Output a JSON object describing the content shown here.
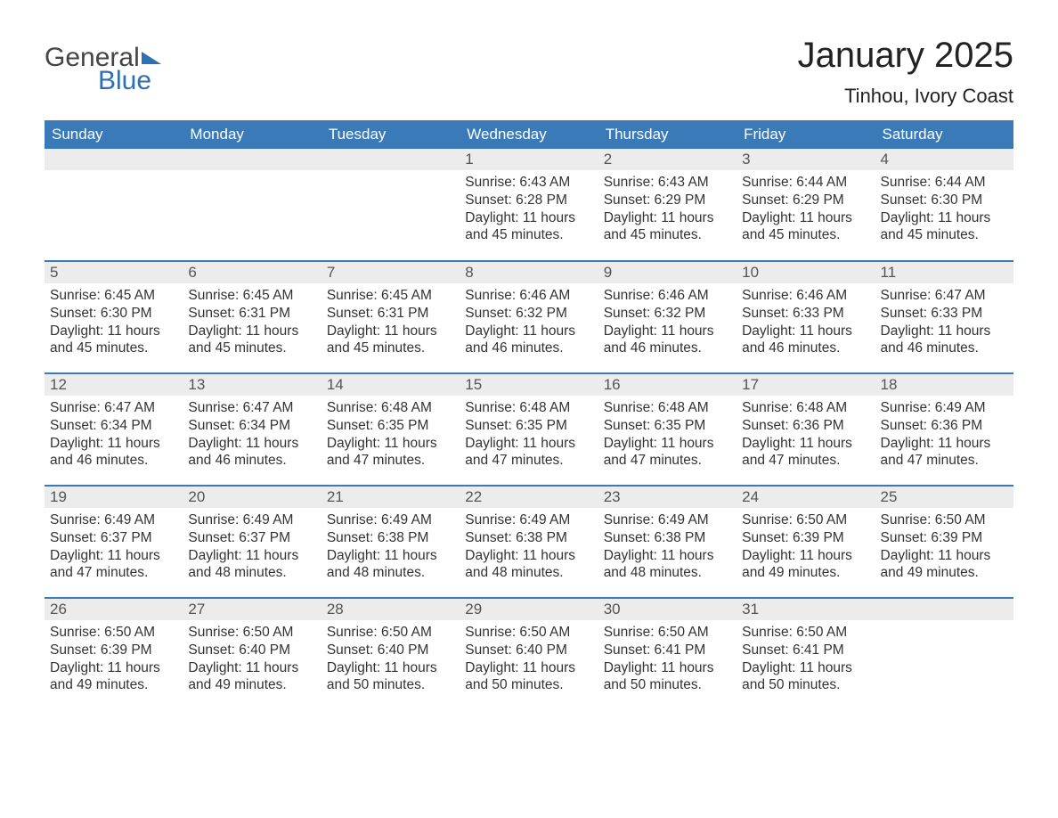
{
  "logo": {
    "text_a": "General",
    "text_b": "Blue"
  },
  "month_title": "January 2025",
  "location": "Tinhou, Ivory Coast",
  "header_bg": "#3a7ab8",
  "header_fg": "#ffffff",
  "daynum_bg": "#ececec",
  "border_color": "#3a7ab8",
  "days_of_week": [
    "Sunday",
    "Monday",
    "Tuesday",
    "Wednesday",
    "Thursday",
    "Friday",
    "Saturday"
  ],
  "labels": {
    "sunrise": "Sunrise: ",
    "sunset": "Sunset: ",
    "daylight": "Daylight: "
  },
  "weeks": [
    [
      {
        "day": "",
        "sunrise": "",
        "sunset": "",
        "daylight": ""
      },
      {
        "day": "",
        "sunrise": "",
        "sunset": "",
        "daylight": ""
      },
      {
        "day": "",
        "sunrise": "",
        "sunset": "",
        "daylight": ""
      },
      {
        "day": "1",
        "sunrise": "6:43 AM",
        "sunset": "6:28 PM",
        "daylight": "11 hours and 45 minutes."
      },
      {
        "day": "2",
        "sunrise": "6:43 AM",
        "sunset": "6:29 PM",
        "daylight": "11 hours and 45 minutes."
      },
      {
        "day": "3",
        "sunrise": "6:44 AM",
        "sunset": "6:29 PM",
        "daylight": "11 hours and 45 minutes."
      },
      {
        "day": "4",
        "sunrise": "6:44 AM",
        "sunset": "6:30 PM",
        "daylight": "11 hours and 45 minutes."
      }
    ],
    [
      {
        "day": "5",
        "sunrise": "6:45 AM",
        "sunset": "6:30 PM",
        "daylight": "11 hours and 45 minutes."
      },
      {
        "day": "6",
        "sunrise": "6:45 AM",
        "sunset": "6:31 PM",
        "daylight": "11 hours and 45 minutes."
      },
      {
        "day": "7",
        "sunrise": "6:45 AM",
        "sunset": "6:31 PM",
        "daylight": "11 hours and 45 minutes."
      },
      {
        "day": "8",
        "sunrise": "6:46 AM",
        "sunset": "6:32 PM",
        "daylight": "11 hours and 46 minutes."
      },
      {
        "day": "9",
        "sunrise": "6:46 AM",
        "sunset": "6:32 PM",
        "daylight": "11 hours and 46 minutes."
      },
      {
        "day": "10",
        "sunrise": "6:46 AM",
        "sunset": "6:33 PM",
        "daylight": "11 hours and 46 minutes."
      },
      {
        "day": "11",
        "sunrise": "6:47 AM",
        "sunset": "6:33 PM",
        "daylight": "11 hours and 46 minutes."
      }
    ],
    [
      {
        "day": "12",
        "sunrise": "6:47 AM",
        "sunset": "6:34 PM",
        "daylight": "11 hours and 46 minutes."
      },
      {
        "day": "13",
        "sunrise": "6:47 AM",
        "sunset": "6:34 PM",
        "daylight": "11 hours and 46 minutes."
      },
      {
        "day": "14",
        "sunrise": "6:48 AM",
        "sunset": "6:35 PM",
        "daylight": "11 hours and 47 minutes."
      },
      {
        "day": "15",
        "sunrise": "6:48 AM",
        "sunset": "6:35 PM",
        "daylight": "11 hours and 47 minutes."
      },
      {
        "day": "16",
        "sunrise": "6:48 AM",
        "sunset": "6:35 PM",
        "daylight": "11 hours and 47 minutes."
      },
      {
        "day": "17",
        "sunrise": "6:48 AM",
        "sunset": "6:36 PM",
        "daylight": "11 hours and 47 minutes."
      },
      {
        "day": "18",
        "sunrise": "6:49 AM",
        "sunset": "6:36 PM",
        "daylight": "11 hours and 47 minutes."
      }
    ],
    [
      {
        "day": "19",
        "sunrise": "6:49 AM",
        "sunset": "6:37 PM",
        "daylight": "11 hours and 47 minutes."
      },
      {
        "day": "20",
        "sunrise": "6:49 AM",
        "sunset": "6:37 PM",
        "daylight": "11 hours and 48 minutes."
      },
      {
        "day": "21",
        "sunrise": "6:49 AM",
        "sunset": "6:38 PM",
        "daylight": "11 hours and 48 minutes."
      },
      {
        "day": "22",
        "sunrise": "6:49 AM",
        "sunset": "6:38 PM",
        "daylight": "11 hours and 48 minutes."
      },
      {
        "day": "23",
        "sunrise": "6:49 AM",
        "sunset": "6:38 PM",
        "daylight": "11 hours and 48 minutes."
      },
      {
        "day": "24",
        "sunrise": "6:50 AM",
        "sunset": "6:39 PM",
        "daylight": "11 hours and 49 minutes."
      },
      {
        "day": "25",
        "sunrise": "6:50 AM",
        "sunset": "6:39 PM",
        "daylight": "11 hours and 49 minutes."
      }
    ],
    [
      {
        "day": "26",
        "sunrise": "6:50 AM",
        "sunset": "6:39 PM",
        "daylight": "11 hours and 49 minutes."
      },
      {
        "day": "27",
        "sunrise": "6:50 AM",
        "sunset": "6:40 PM",
        "daylight": "11 hours and 49 minutes."
      },
      {
        "day": "28",
        "sunrise": "6:50 AM",
        "sunset": "6:40 PM",
        "daylight": "11 hours and 50 minutes."
      },
      {
        "day": "29",
        "sunrise": "6:50 AM",
        "sunset": "6:40 PM",
        "daylight": "11 hours and 50 minutes."
      },
      {
        "day": "30",
        "sunrise": "6:50 AM",
        "sunset": "6:41 PM",
        "daylight": "11 hours and 50 minutes."
      },
      {
        "day": "31",
        "sunrise": "6:50 AM",
        "sunset": "6:41 PM",
        "daylight": "11 hours and 50 minutes."
      },
      {
        "day": "",
        "sunrise": "",
        "sunset": "",
        "daylight": ""
      }
    ]
  ]
}
